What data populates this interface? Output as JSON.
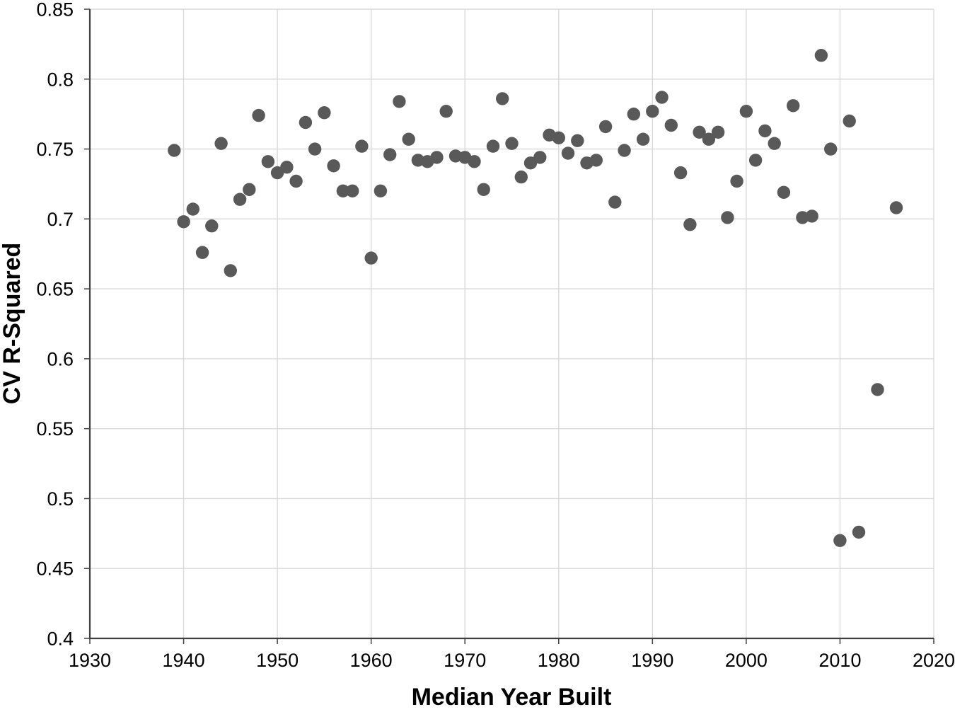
{
  "chart_data": {
    "type": "scatter",
    "title": "",
    "xlabel": "Median Year Built",
    "ylabel": "CV R-Squared",
    "xlim": [
      1930,
      2020
    ],
    "ylim": [
      0.4,
      0.85
    ],
    "x_ticks": [
      1930,
      1940,
      1950,
      1960,
      1970,
      1980,
      1990,
      2000,
      2010,
      2020
    ],
    "y_ticks": [
      0.4,
      0.45,
      0.5,
      0.55,
      0.6,
      0.65,
      0.7,
      0.75,
      0.8,
      0.85
    ],
    "y_tick_labels": [
      "0.4",
      "0.45",
      "0.5",
      "0.55",
      "0.6",
      "0.65",
      "0.7",
      "0.75",
      "0.8",
      "0.85"
    ],
    "grid": true,
    "legend": "none",
    "marker_color": "#595959",
    "grid_color": "#d9d9d9",
    "axis_color": "#404040",
    "label_color": "#000000",
    "points": [
      [
        1939,
        0.749
      ],
      [
        1940,
        0.698
      ],
      [
        1941,
        0.707
      ],
      [
        1942,
        0.676
      ],
      [
        1943,
        0.695
      ],
      [
        1944,
        0.754
      ],
      [
        1945,
        0.663
      ],
      [
        1946,
        0.714
      ],
      [
        1947,
        0.721
      ],
      [
        1948,
        0.774
      ],
      [
        1949,
        0.741
      ],
      [
        1950,
        0.733
      ],
      [
        1951,
        0.737
      ],
      [
        1952,
        0.727
      ],
      [
        1953,
        0.769
      ],
      [
        1954,
        0.75
      ],
      [
        1955,
        0.776
      ],
      [
        1956,
        0.738
      ],
      [
        1957,
        0.72
      ],
      [
        1958,
        0.72
      ],
      [
        1959,
        0.752
      ],
      [
        1960,
        0.672
      ],
      [
        1961,
        0.72
      ],
      [
        1962,
        0.746
      ],
      [
        1963,
        0.784
      ],
      [
        1964,
        0.757
      ],
      [
        1965,
        0.742
      ],
      [
        1966,
        0.741
      ],
      [
        1967,
        0.744
      ],
      [
        1968,
        0.777
      ],
      [
        1969,
        0.745
      ],
      [
        1970,
        0.744
      ],
      [
        1971,
        0.741
      ],
      [
        1972,
        0.721
      ],
      [
        1973,
        0.752
      ],
      [
        1974,
        0.786
      ],
      [
        1975,
        0.754
      ],
      [
        1976,
        0.73
      ],
      [
        1977,
        0.74
      ],
      [
        1978,
        0.744
      ],
      [
        1979,
        0.76
      ],
      [
        1980,
        0.758
      ],
      [
        1981,
        0.747
      ],
      [
        1982,
        0.756
      ],
      [
        1983,
        0.74
      ],
      [
        1984,
        0.742
      ],
      [
        1985,
        0.766
      ],
      [
        1986,
        0.712
      ],
      [
        1987,
        0.749
      ],
      [
        1988,
        0.775
      ],
      [
        1989,
        0.757
      ],
      [
        1990,
        0.777
      ],
      [
        1991,
        0.787
      ],
      [
        1992,
        0.767
      ],
      [
        1993,
        0.733
      ],
      [
        1994,
        0.696
      ],
      [
        1995,
        0.762
      ],
      [
        1996,
        0.757
      ],
      [
        1997,
        0.762
      ],
      [
        1998,
        0.701
      ],
      [
        1999,
        0.727
      ],
      [
        2000,
        0.777
      ],
      [
        2001,
        0.742
      ],
      [
        2002,
        0.763
      ],
      [
        2003,
        0.754
      ],
      [
        2004,
        0.719
      ],
      [
        2005,
        0.781
      ],
      [
        2006,
        0.701
      ],
      [
        2007,
        0.702
      ],
      [
        2008,
        0.817
      ],
      [
        2009,
        0.75
      ],
      [
        2010,
        0.47
      ],
      [
        2011,
        0.77
      ],
      [
        2012,
        0.476
      ],
      [
        2014,
        0.578
      ],
      [
        2016,
        0.708
      ]
    ]
  }
}
